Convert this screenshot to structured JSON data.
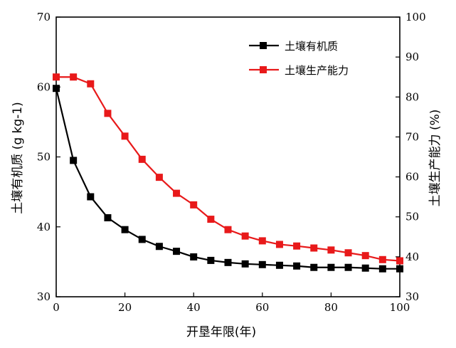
{
  "chart_data": {
    "type": "line",
    "title": "",
    "xlabel": "开垦年限(年)",
    "ylabel_left": "土壤有机质 (g kg-1)",
    "ylabel_right": "土壤生产能力 (%)",
    "xlim": [
      0,
      100
    ],
    "ylim_left": [
      30,
      70
    ],
    "ylim_right": [
      30,
      100
    ],
    "x_ticks": [
      "0",
      "20",
      "40",
      "60",
      "80",
      "100"
    ],
    "y_left_ticks": [
      "30",
      "40",
      "50",
      "60",
      "70"
    ],
    "y_right_ticks": [
      "30",
      "40",
      "50",
      "60",
      "70",
      "80",
      "90",
      "100"
    ],
    "grid": false,
    "legend_position": "top-right",
    "x": [
      0,
      5,
      10,
      15,
      20,
      25,
      30,
      35,
      40,
      45,
      50,
      55,
      60,
      65,
      70,
      75,
      80,
      85,
      90,
      95,
      100
    ],
    "series": [
      {
        "name": "土壤有机质",
        "axis": "left",
        "color": "#000000",
        "values": [
          59.8,
          49.5,
          44.3,
          41.3,
          39.6,
          38.2,
          37.2,
          36.5,
          35.7,
          35.2,
          34.9,
          34.7,
          34.6,
          34.5,
          34.4,
          34.2,
          34.2,
          34.2,
          34.1,
          34.0,
          34.0
        ]
      },
      {
        "name": "土壤生产能力",
        "axis": "right",
        "color": "#e8191a",
        "values": [
          85.0,
          85.0,
          83.3,
          75.9,
          70.2,
          64.4,
          59.9,
          55.9,
          53.0,
          49.4,
          46.8,
          45.2,
          44.0,
          43.1,
          42.7,
          42.2,
          41.7,
          41.0,
          40.3,
          39.3,
          39.0
        ]
      }
    ]
  }
}
